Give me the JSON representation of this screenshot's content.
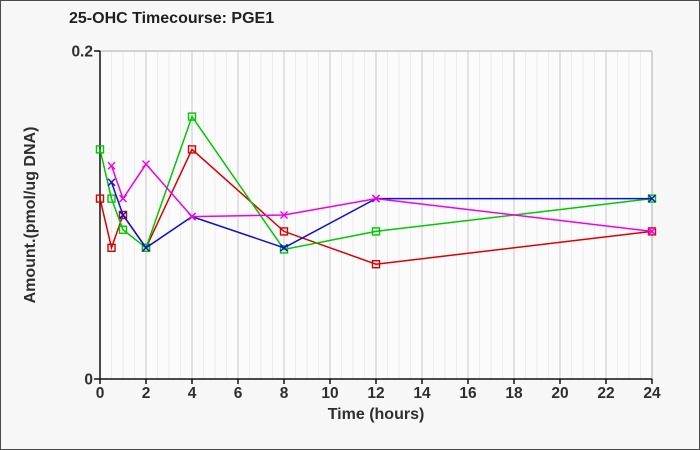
{
  "figure": {
    "background": "#f7f7f7",
    "plot_background": "#fbfbfb",
    "border_color": "#4a4a4a",
    "axis_color": "#111111",
    "text_color": "#2e2e2e",
    "grid_minor_color": "#ececec",
    "grid_major_color": "#d2d2d2",
    "frame_color": "#c6c6c6"
  },
  "chart_data": {
    "type": "line",
    "title": "25-OHC Timecourse: PGE1",
    "xlabel": "Time (hours)",
    "ylabel": "Amount.(pmol/ug DNA)",
    "xlim": [
      0,
      24
    ],
    "ylim": [
      0,
      0.2
    ],
    "x_major_ticks": [
      0,
      2,
      4,
      6,
      8,
      10,
      12,
      14,
      16,
      18,
      20,
      22,
      24
    ],
    "x_minor_step": 0.5,
    "y_ticks": [
      0,
      0.2
    ],
    "y_tick_labels": [
      "0",
      "0.2"
    ],
    "grid": "vertical-only",
    "legend": "none",
    "series": [
      {
        "name": "series-red",
        "color": "#dd0000",
        "marker": "square",
        "points": [
          [
            0,
            0.11
          ],
          [
            0.5,
            0.08
          ],
          [
            1,
            0.1
          ],
          [
            2,
            0.08
          ],
          [
            4,
            0.14
          ],
          [
            8,
            0.09
          ],
          [
            12,
            0.07
          ],
          [
            24,
            0.09
          ]
        ]
      },
      {
        "name": "series-green",
        "color": "#00c800",
        "marker": "square",
        "points": [
          [
            0,
            0.14
          ],
          [
            0.5,
            0.11
          ],
          [
            1,
            0.091
          ],
          [
            2,
            0.08
          ],
          [
            4,
            0.16
          ],
          [
            8,
            0.079
          ],
          [
            12,
            0.09
          ],
          [
            24,
            0.11
          ]
        ]
      },
      {
        "name": "series-blue",
        "color": "#1010cc",
        "marker": "x",
        "points": [
          [
            0.5,
            0.12
          ],
          [
            1,
            0.1
          ],
          [
            2,
            0.08
          ],
          [
            4,
            0.099
          ],
          [
            8,
            0.08
          ],
          [
            12,
            0.11
          ],
          [
            24,
            0.11
          ]
        ]
      },
      {
        "name": "series-magenta",
        "color": "#ee00ee",
        "marker": "x",
        "points": [
          [
            0.5,
            0.13
          ],
          [
            1,
            0.11
          ],
          [
            2,
            0.131
          ],
          [
            4,
            0.099
          ],
          [
            8,
            0.1
          ],
          [
            12,
            0.11
          ],
          [
            24,
            0.09
          ]
        ]
      }
    ]
  }
}
